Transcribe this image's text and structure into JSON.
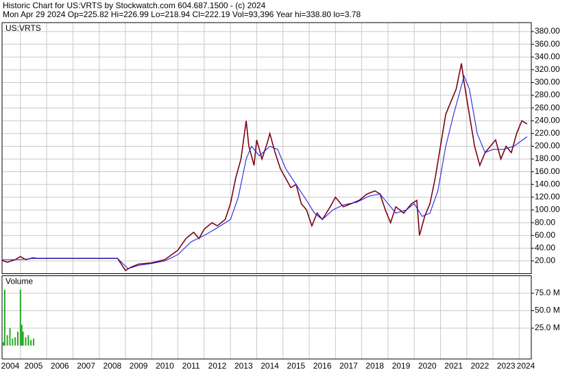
{
  "header": {
    "line1": "Historic Chart for US:VRTS by Stockwatch.com 604.687.1500 - (c) 2024",
    "line2": "Mon Apr 29 2024   Op=225.82   Hi=226.99   Lo=218.94   Cl=222.19   Vol=93,396   Year hi=338.80   lo=3.78"
  },
  "chart_data": [
    {
      "type": "line",
      "title": "US:VRTS",
      "grid": true,
      "xlim": [
        2004.3,
        2024.46
      ],
      "ylim": [
        0,
        394
      ],
      "yticks": [
        {
          "value": 20,
          "label": "20.00"
        },
        {
          "value": 40,
          "label": "40.00"
        },
        {
          "value": 60,
          "label": "60.00"
        },
        {
          "value": 80,
          "label": "80.00"
        },
        {
          "value": 100,
          "label": "100.00"
        },
        {
          "value": 120,
          "label": "120.00"
        },
        {
          "value": 140,
          "label": "140.00"
        },
        {
          "value": 160,
          "label": "160.00"
        },
        {
          "value": 180,
          "label": "180.00"
        },
        {
          "value": 200,
          "label": "200.00"
        },
        {
          "value": 220,
          "label": "220.00"
        },
        {
          "value": 240,
          "label": "240.00"
        },
        {
          "value": 260,
          "label": "260.00"
        },
        {
          "value": 280,
          "label": "280.00"
        },
        {
          "value": 300,
          "label": "300.00"
        },
        {
          "value": 320,
          "label": "320.00"
        },
        {
          "value": 340,
          "label": "340.00"
        },
        {
          "value": 360,
          "label": "360.00"
        },
        {
          "value": 380,
          "label": "380.00"
        }
      ],
      "xticks": [
        2005,
        2006,
        2007,
        2008,
        2009,
        2010,
        2011,
        2012,
        2013,
        2014,
        2015,
        2016,
        2017,
        2018,
        2019,
        2020,
        2021,
        2022,
        2023,
        2024
      ],
      "series": [
        {
          "color": "#7a0010",
          "x": [
            2004.3,
            2004.5,
            2004.8,
            2005.0,
            2005.2,
            2005.5,
            2005.6,
            2008.7,
            2009.0,
            2009.2,
            2009.5,
            2010.0,
            2010.5,
            2011.0,
            2011.3,
            2011.6,
            2011.8,
            2012.0,
            2012.3,
            2012.5,
            2012.8,
            2013.0,
            2013.2,
            2013.4,
            2013.5,
            2013.6,
            2013.7,
            2013.9,
            2014.0,
            2014.2,
            2014.4,
            2014.5,
            2014.7,
            2014.9,
            2015.1,
            2015.3,
            2015.5,
            2015.7,
            2015.9,
            2016.1,
            2016.3,
            2016.5,
            2016.8,
            2017.0,
            2017.3,
            2017.6,
            2017.9,
            2018.2,
            2018.5,
            2018.7,
            2018.9,
            2019.1,
            2019.3,
            2019.6,
            2019.9,
            2020.1,
            2020.2,
            2020.4,
            2020.6,
            2020.8,
            2021.0,
            2021.2,
            2021.4,
            2021.6,
            2021.8,
            2021.9,
            2022.1,
            2022.3,
            2022.5,
            2022.7,
            2022.9,
            2023.1,
            2023.3,
            2023.5,
            2023.7,
            2023.9,
            2024.1,
            2024.3
          ],
          "values": [
            21,
            18,
            22,
            27,
            22,
            25,
            24,
            24,
            5,
            10,
            15,
            17,
            22,
            37,
            55,
            65,
            55,
            70,
            80,
            75,
            85,
            110,
            150,
            180,
            210,
            240,
            200,
            170,
            210,
            180,
            205,
            220,
            190,
            165,
            150,
            135,
            140,
            110,
            100,
            75,
            95,
            85,
            105,
            120,
            105,
            110,
            115,
            125,
            130,
            125,
            100,
            80,
            105,
            95,
            110,
            115,
            60,
            90,
            110,
            150,
            200,
            250,
            270,
            290,
            330,
            300,
            250,
            200,
            170,
            190,
            200,
            210,
            180,
            200,
            190,
            220,
            240,
            235
          ]
        },
        {
          "color": "#2222dd",
          "x": [
            2004.3,
            2005.0,
            2005.5,
            2008.7,
            2009.1,
            2009.5,
            2010.0,
            2010.5,
            2011.0,
            2011.5,
            2012.0,
            2012.5,
            2013.0,
            2013.3,
            2013.6,
            2013.8,
            2014.1,
            2014.5,
            2014.8,
            2015.1,
            2015.5,
            2015.9,
            2016.2,
            2016.5,
            2016.9,
            2017.3,
            2017.8,
            2018.3,
            2018.7,
            2019.0,
            2019.3,
            2019.7,
            2020.0,
            2020.3,
            2020.6,
            2020.9,
            2021.2,
            2021.5,
            2021.9,
            2022.1,
            2022.4,
            2022.7,
            2023.0,
            2023.4,
            2023.8,
            2024.3
          ],
          "values": [
            22,
            22,
            24,
            24,
            8,
            13,
            16,
            20,
            30,
            50,
            60,
            72,
            85,
            120,
            180,
            200,
            185,
            200,
            195,
            165,
            140,
            115,
            95,
            85,
            100,
            108,
            112,
            122,
            125,
            110,
            95,
            100,
            110,
            90,
            95,
            130,
            200,
            250,
            310,
            290,
            220,
            190,
            195,
            195,
            200,
            215
          ]
        }
      ]
    },
    {
      "type": "bar",
      "title": "Volume",
      "grid": true,
      "xlim": [
        2004.3,
        2024.46
      ],
      "ylim": [
        0,
        100
      ],
      "yticks": [
        {
          "value": 25,
          "label": "25.0 M"
        },
        {
          "value": 50,
          "label": "50.0 M"
        },
        {
          "value": 75,
          "label": "75.0 M"
        }
      ],
      "xticks": [
        2004,
        2005,
        2006,
        2007,
        2008,
        2009,
        2010,
        2011,
        2012,
        2013,
        2014,
        2015,
        2016,
        2017,
        2018,
        2019,
        2020,
        2021,
        2022,
        2023,
        2024
      ],
      "color": "#22aa22",
      "x": [
        2004.35,
        2004.4,
        2004.5,
        2004.6,
        2004.7,
        2004.8,
        2004.9,
        2005.0,
        2005.05,
        2005.1,
        2005.2,
        2005.3,
        2005.4,
        2005.5
      ],
      "values": [
        5,
        80,
        15,
        25,
        10,
        12,
        20,
        80,
        30,
        20,
        12,
        15,
        8,
        10
      ]
    }
  ]
}
